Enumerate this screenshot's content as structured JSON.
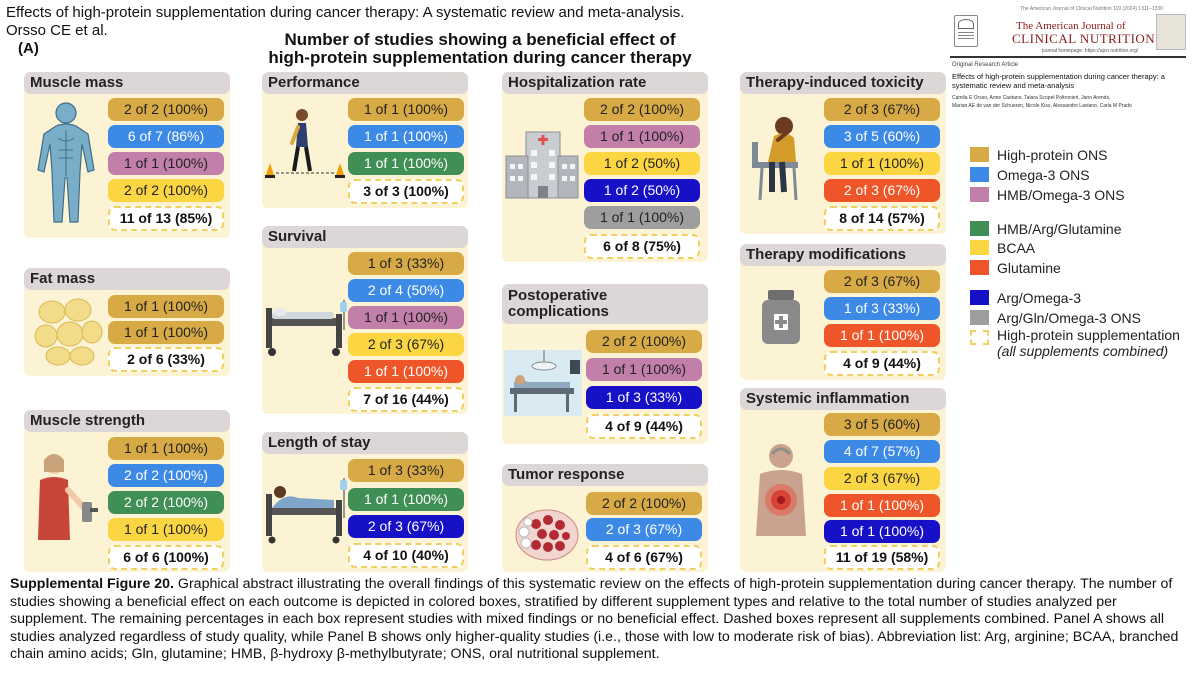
{
  "header": {
    "title_line": "Effects of high-protein supplementation during cancer therapy: A systematic review and meta-analysis.",
    "authors": "Orsso CE et al.",
    "panel_label": "(A)"
  },
  "figure_title": {
    "line1": "Number of studies showing a beneficial effect of",
    "line2": "high-protein supplementation during cancer therapy"
  },
  "journal": {
    "top_line": "The American Journal of Clinical Nutrition 119 (2024) 1311–1330",
    "name_line1": "The American Journal of",
    "name_line2": "CLINICAL NUTRITION",
    "homepage": "journal homepage: https://ajcn.nutrition.org/",
    "article_type": "Original Research Article",
    "article_title": "Effects of high-protein supplementation during cancer therapy: a systematic review and meta-analysis",
    "authors_line1": "Camila E Orsso, Anne Caetano, Taiara Scopel Poltronieri, Jann Arends,",
    "authors_line2": "Marian AE de van der Schueren, Nicole Kiss, Alessandro Laviano, Carla M Prado"
  },
  "legend": [
    {
      "label": "High-protein ONS",
      "color": "#d8aa45"
    },
    {
      "label": "Omega-3 ONS",
      "color": "#3d8ae6"
    },
    {
      "label": "HMB/Omega-3 ONS",
      "color": "#c17fa9"
    },
    {
      "label": "HMB/Arg/Glutamine",
      "color": "#3f8f56"
    },
    {
      "label": "BCAA",
      "color": "#fbd642"
    },
    {
      "label": "Glutamine",
      "color": "#ee5528"
    },
    {
      "label": "Arg/Omega-3",
      "color": "#1610c6"
    },
    {
      "label": "Arg/Gln/Omega-3 ONS",
      "color": "#9e9e9e"
    }
  ],
  "legend_dashed": {
    "line1": "High-protein supplementation",
    "line2": "(all supplements combined)"
  },
  "outcomes": {
    "muscle_mass": {
      "title": "Muscle mass",
      "boxes": [
        "2 of 2 (100%)",
        "6 of 7 (86%)",
        "1 of 1 (100%)",
        "2 of 2 (100%)"
      ],
      "total": "11 of 13 (85%)"
    },
    "fat_mass": {
      "title": "Fat mass",
      "boxes": [
        "1 of 1 (100%)",
        "1 of 1 (100%)"
      ],
      "total": "2 of 6 (33%)"
    },
    "muscle_strength": {
      "title": "Muscle strength",
      "boxes": [
        "1 of 1 (100%)",
        "2 of 2 (100%)",
        "2 of 2 (100%)",
        "1 of 1 (100%)"
      ],
      "total": "6 of 6 (100%)"
    },
    "performance": {
      "title": "Performance",
      "boxes": [
        "1 of 1 (100%)",
        "1 of 1 (100%)",
        "1 of 1 (100%)"
      ],
      "total": "3 of 3 (100%)"
    },
    "survival": {
      "title": "Survival",
      "boxes": [
        "1 of 3 (33%)",
        "2 of 4 (50%)",
        "1 of 1 (100%)",
        "2 of 3 (67%)",
        "1 of 1 (100%)"
      ],
      "total": "7 of 16 (44%)"
    },
    "length_of_stay": {
      "title": "Length of stay",
      "boxes": [
        "1 of 3 (33%)",
        "1 of 1 (100%)",
        "2 of 3 (67%)"
      ],
      "total": "4 of 10 (40%)"
    },
    "hospitalization": {
      "title": "Hospitalization rate",
      "boxes": [
        "2 of 2 (100%)",
        "1 of 1 (100%)",
        "1 of 2 (50%)",
        "1 of 2 (50%)",
        "1 of 1 (100%)"
      ],
      "total": "6 of 8 (75%)"
    },
    "postoperative": {
      "title_line1": "Postoperative",
      "title_line2": "complications",
      "boxes": [
        "2 of 2 (100%)",
        "1 of 1 (100%)",
        "1 of 3 (33%)"
      ],
      "total": "4 of 9 (44%)"
    },
    "tumor_response": {
      "title": "Tumor response",
      "boxes": [
        "2 of 2 (100%)",
        "2 of 3 (67%)"
      ],
      "total": "4 of 6 (67%)"
    },
    "toxicity": {
      "title": "Therapy-induced toxicity",
      "boxes": [
        "2 of 3 (67%)",
        "3 of 5 (60%)",
        "1 of 1 (100%)",
        "2 of 3 (67%)"
      ],
      "total": "8 of 14 (57%)"
    },
    "therapy_mod": {
      "title": "Therapy modifications",
      "boxes": [
        "2 of 3 (67%)",
        "1 of 3 (33%)",
        "1 of 1 (100%)"
      ],
      "total": "4 of 9 (44%)"
    },
    "inflammation": {
      "title": "Systemic inflammation",
      "boxes": [
        "3 of 5 (60%)",
        "4 of 7 (57%)",
        "2 of 3 (67%)",
        "1 of 1 (100%)",
        "1 of 1 (100%)"
      ],
      "total": "11 of 19 (58%)"
    }
  },
  "caption": {
    "label": "Supplemental Figure 20.",
    "text": " Graphical abstract illustrating the overall findings of this systematic review on the effects of high-protein supplementation during cancer therapy. The number of studies showing a beneficial effect on each outcome is depicted in colored boxes, stratified by different supplement types and relative to the total number of studies analyzed per supplement. The remaining percentages in each box represent studies with mixed findings or no beneficial effect. Dashed boxes represent all supplements combined. Panel A shows all studies analyzed regardless of study quality, while Panel B shows only higher-quality studies (i.e., those with low to moderate risk of bias). Abbreviation list: Arg, arginine; BCAA, branched chain amino acids; Gln, glutamine; HMB, β-hydroxy β-methylbutyrate; ONS, oral nutritional supplement."
  }
}
